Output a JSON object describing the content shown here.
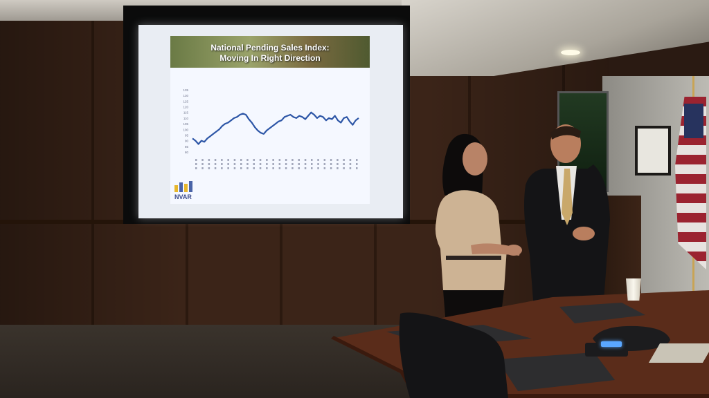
{
  "scene": {
    "setting": "conference room presentation"
  },
  "slide": {
    "title_line1": "National Pending Sales Index:",
    "title_line2": "Moving In Right Direction",
    "logo_text": "NVAR"
  },
  "chart_data": {
    "type": "line",
    "title": "National Pending Sales Index: Moving In Right Direction",
    "xlabel": "",
    "ylabel": "",
    "ylim": [
      80,
      135
    ],
    "yticks": [
      80,
      85,
      90,
      95,
      100,
      105,
      110,
      115,
      120,
      125,
      130,
      135
    ],
    "series": [
      {
        "values": [
          92,
          90,
          87,
          90,
          89,
          92,
          94,
          96,
          98,
          100,
          103,
          105,
          106,
          108,
          110,
          111,
          113,
          114,
          113,
          109,
          106,
          102,
          99,
          97,
          96,
          99,
          101,
          103,
          105,
          107,
          108,
          111,
          112,
          113,
          111,
          110,
          112,
          111,
          109,
          112,
          115,
          113,
          110,
          112,
          111,
          108,
          110,
          109,
          112,
          108,
          106,
          110,
          111,
          107,
          104,
          108,
          110
        ]
      }
    ],
    "grid": false,
    "legend": "none",
    "line_color": "#2c55a6"
  },
  "colors": {
    "wall": "#3b2418",
    "screen": "#e9edf3",
    "line": "#2c55a6"
  }
}
